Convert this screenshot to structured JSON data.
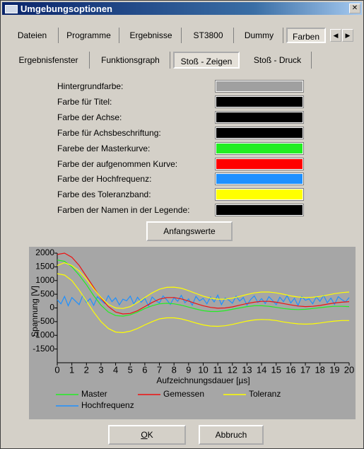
{
  "window": {
    "title": "Umgebungsoptionen"
  },
  "tabs": [
    "Dateien",
    "Programme",
    "Ergebnisse",
    "ST3800",
    "Dummy",
    "Farben"
  ],
  "active_tab": 5,
  "subtabs": [
    "Ergebnisfenster",
    "Funktionsgraph",
    "Stoß - Zeigen",
    "Stoß - Druck"
  ],
  "active_subtab": 2,
  "color_settings": [
    {
      "label": "Hintergrundfarbe:",
      "color": "#a0a0a0"
    },
    {
      "label": "Farbe für Titel:",
      "color": "#000000"
    },
    {
      "label": "Farbe der Achse:",
      "color": "#000000"
    },
    {
      "label": "Farbe für Achsbeschriftung:",
      "color": "#000000"
    },
    {
      "label": "Farebe der Masterkurve:",
      "color": "#22ee22"
    },
    {
      "label": "Farbe der aufgenommen Kurve:",
      "color": "#ff0000"
    },
    {
      "label": "Farbe der Hochfrequenz:",
      "color": "#1e90ff"
    },
    {
      "label": "Farbe des Toleranzband:",
      "color": "#ffff00"
    },
    {
      "label": "Farben der Namen in der Legende:",
      "color": "#000000"
    }
  ],
  "buttons": {
    "reset": "Anfangswerte",
    "ok": "OK",
    "cancel": "Abbruch"
  },
  "chart_data": {
    "type": "line",
    "background": "#a6a6a6",
    "xlabel": "Aufzeichnungsdauer [µs]",
    "ylabel": "Spannung [V]",
    "xlim": [
      0,
      20
    ],
    "ylim": [
      -2000,
      2000
    ],
    "xticks": [
      0,
      1,
      2,
      3,
      4,
      5,
      6,
      7,
      8,
      9,
      10,
      11,
      12,
      13,
      14,
      15,
      16,
      17,
      18,
      19,
      20
    ],
    "yticks": [
      -1500,
      -1000,
      -500,
      0,
      500,
      1000,
      1500,
      2000
    ],
    "x": [
      0,
      0.5,
      1,
      1.5,
      2,
      2.5,
      3,
      3.5,
      4,
      4.5,
      5,
      5.5,
      6,
      6.5,
      7,
      7.5,
      8,
      8.5,
      9,
      9.5,
      10,
      10.5,
      11,
      11.5,
      12,
      12.5,
      13,
      13.5,
      14,
      14.5,
      15,
      15.5,
      16,
      16.5,
      17,
      17.5,
      18,
      18.5,
      19,
      19.5,
      20
    ],
    "series": [
      {
        "name": "Master",
        "color": "#22ee22",
        "values": [
          1750,
          1700,
          1500,
          1200,
          850,
          450,
          100,
          -150,
          -280,
          -300,
          -250,
          -150,
          -20,
          80,
          150,
          170,
          150,
          100,
          30,
          -40,
          -100,
          -130,
          -130,
          -100,
          -50,
          0,
          50,
          80,
          80,
          60,
          20,
          -20,
          -50,
          -60,
          -50,
          -20,
          10,
          40,
          60,
          60,
          50
        ]
      },
      {
        "name": "Gemessen",
        "color": "#ee1111",
        "values": [
          1950,
          2000,
          1850,
          1550,
          1150,
          750,
          350,
          50,
          -150,
          -220,
          -200,
          -100,
          50,
          200,
          320,
          380,
          380,
          330,
          250,
          160,
          80,
          20,
          -10,
          0,
          40,
          100,
          160,
          210,
          240,
          240,
          210,
          160,
          110,
          70,
          50,
          60,
          90,
          140,
          180,
          210,
          230
        ]
      },
      {
        "name": "Toleranz",
        "color": "#ffff00",
        "values": [
          1550,
          1650,
          1550,
          1350,
          1050,
          700,
          380,
          130,
          0,
          -20,
          50,
          200,
          380,
          550,
          680,
          750,
          760,
          720,
          630,
          530,
          430,
          360,
          320,
          320,
          360,
          420,
          490,
          550,
          580,
          580,
          550,
          500,
          440,
          400,
          380,
          390,
          420,
          470,
          520,
          560,
          580
        ],
        "lower": [
          1250,
          1200,
          1000,
          650,
          250,
          -150,
          -500,
          -750,
          -880,
          -900,
          -850,
          -750,
          -620,
          -500,
          -400,
          -360,
          -360,
          -400,
          -470,
          -550,
          -620,
          -660,
          -670,
          -650,
          -600,
          -540,
          -480,
          -440,
          -420,
          -430,
          -460,
          -510,
          -550,
          -580,
          -590,
          -580,
          -550,
          -510,
          -480,
          -460,
          -460
        ]
      },
      {
        "name": "Hochfrequenz",
        "color": "#1e90ff",
        "x": [
          0,
          0.25,
          0.5,
          0.75,
          1,
          1.25,
          1.5,
          1.75,
          2,
          2.25,
          2.5,
          2.75,
          3,
          3.25,
          3.5,
          3.75,
          4,
          4.25,
          4.5,
          4.75,
          5,
          5.25,
          5.5,
          5.75,
          6,
          6.25,
          6.5,
          6.75,
          7,
          7.25,
          7.5,
          7.75,
          8,
          8.25,
          8.5,
          8.75,
          9,
          9.25,
          9.5,
          9.75,
          10,
          10.25,
          10.5,
          10.75,
          11,
          11.25,
          11.5,
          11.75,
          12,
          12.25,
          12.5,
          12.75,
          13,
          13.25,
          13.5,
          13.75,
          14,
          14.25,
          14.5,
          14.75,
          15,
          15.25,
          15.5,
          15.75,
          16,
          16.25,
          16.5,
          16.75,
          17,
          17.25,
          17.5,
          17.75,
          18,
          18.25,
          18.5,
          18.75,
          19,
          19.25,
          19.5,
          19.75,
          20
        ],
        "values": [
          300,
          150,
          420,
          80,
          380,
          250,
          120,
          460,
          200,
          340,
          90,
          410,
          280,
          160,
          450,
          230,
          370,
          110,
          320,
          260,
          430,
          140,
          390,
          210,
          350,
          70,
          400,
          270,
          180,
          440,
          300,
          130,
          380,
          240,
          460,
          190,
          330,
          100,
          420,
          260,
          350,
          150,
          400,
          220,
          470,
          120,
          360,
          290,
          170,
          430,
          250,
          380,
          100,
          310,
          440,
          200,
          340,
          160,
          410,
          270,
          120,
          390,
          230,
          450,
          180,
          350,
          90,
          420,
          280,
          330,
          150,
          400,
          240,
          460,
          190,
          360,
          130,
          410,
          300,
          220,
          380
        ]
      }
    ]
  }
}
